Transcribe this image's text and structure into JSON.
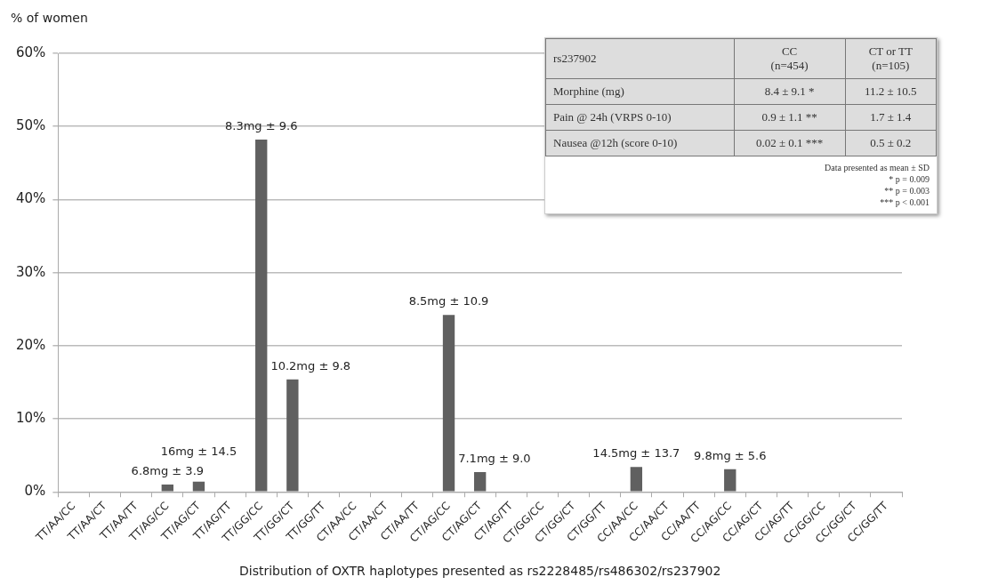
{
  "chart_data": [
    {
      "type": "bar",
      "ylabel": "% of women",
      "xlabel": "Distribution of OXTR haplotypes presented as rs2228485/rs486302/rs237902",
      "categories": [
        "TT/AA/CC",
        "TT/AA/CT",
        "TT/AA/TT",
        "TT/AG/CC",
        "TT/AG/CT",
        "TT/AG/TT",
        "TT/GG/CC",
        "TT/GG/CT",
        "TT/GG/TT",
        "CT/AA/CC",
        "CT/AA/CT",
        "CT/AA/TT",
        "CT/AG/CC",
        "CT/AG/CT",
        "CT/AG/TT",
        "CT/GG/CC",
        "CT/GG/CT",
        "CT/GG/TT",
        "CC/AA/CC",
        "CC/AA/CT",
        "CC/AA/TT",
        "CC/AG/CC",
        "CC/AG/CT",
        "CC/AG/TT",
        "CC/GG/CC",
        "CC/GG/CT",
        "CC/GG/TT"
      ],
      "values": [
        0,
        0,
        0,
        1.0,
        1.4,
        0,
        48.2,
        15.4,
        0,
        0,
        0,
        0,
        24.2,
        2.7,
        0,
        0,
        0,
        0,
        3.4,
        0,
        0,
        3.1,
        0,
        0,
        0,
        0,
        0
      ],
      "color": "#606060",
      "ylim": [
        0,
        60
      ],
      "yticks": [
        {
          "value": 0,
          "label": "0%"
        },
        {
          "value": 10,
          "label": "10%"
        },
        {
          "value": 20,
          "label": "20%"
        },
        {
          "value": 30,
          "label": "30%"
        },
        {
          "value": 40,
          "label": "40%"
        },
        {
          "value": 50,
          "label": "50%"
        },
        {
          "value": 60,
          "label": "60%"
        }
      ],
      "grid": "y",
      "legend": false,
      "annotations": [
        {
          "text": "6.8mg ± 3.9",
          "x": "TT/AG/CC",
          "y": 1.0
        },
        {
          "text": "16mg ± 14.5",
          "x": "TT/AG/CT",
          "y": 1.4
        },
        {
          "text": "8.3mg ± 9.6",
          "x": "TT/GG/CC",
          "y": 48.2
        },
        {
          "text": "10.2mg ± 9.8",
          "x": "TT/GG/CT",
          "y": 15.4
        },
        {
          "text": "8.5mg ± 10.9",
          "x": "CT/AG/CC",
          "y": 24.2
        },
        {
          "text": "7.1mg ± 9.0",
          "x": "CT/AG/CT",
          "y": 2.7
        },
        {
          "text": "14.5mg ± 13.7",
          "x": "CC/AA/CC",
          "y": 3.4
        },
        {
          "text": "9.8mg ± 5.6",
          "x": "CC/AG/CC",
          "y": 3.1
        }
      ]
    },
    {
      "type": "other",
      "categories": [
        "rs237902",
        "CC (n=454)",
        "CT or TT (n=105)"
      ],
      "y_categories": [
        "Morphine (mg)",
        "Pain @ 24h  (VRPS 0-10)",
        "Nausea @12h (score 0-10)"
      ],
      "cell_labels": [
        [
          "8.4 ± 9.1 *",
          "11.2 ± 10.5"
        ],
        [
          "0.9 ± 1.1 **",
          "1.7 ± 1.4"
        ],
        [
          "0.02 ± 0.1 ***",
          "0.5 ± 0.2"
        ]
      ],
      "annotations": [
        "Data presented as mean ± SD",
        "*  p = 0.009",
        "**  p = 0.003",
        "***  p < 0.001"
      ]
    }
  ]
}
